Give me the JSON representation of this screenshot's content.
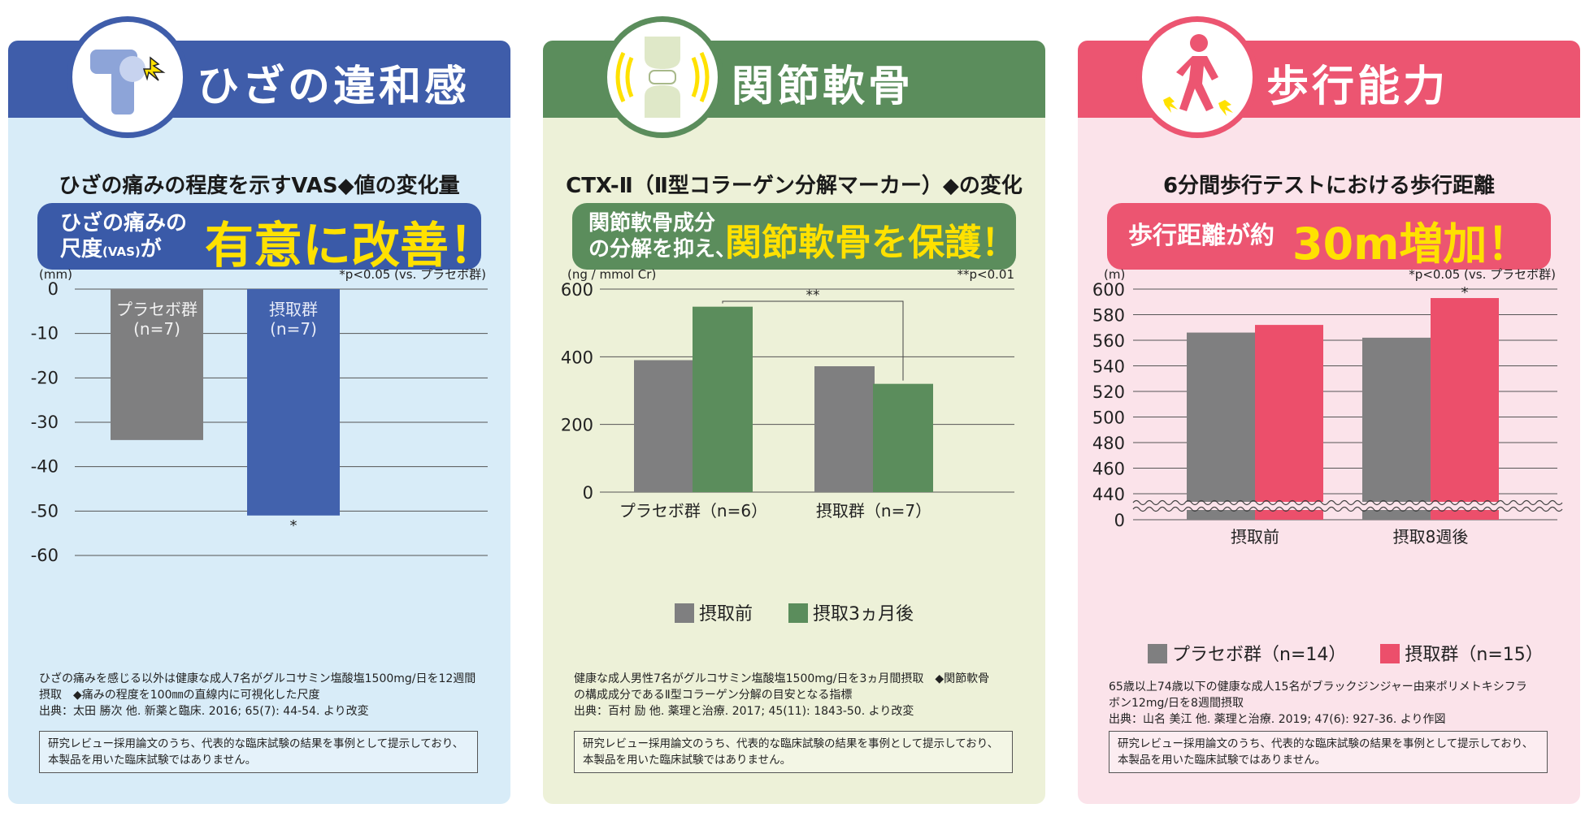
{
  "panels": [
    {
      "title": "ひざの違和感",
      "icon": "knee-pain-icon",
      "subtitle": "ひざの痛みの程度を示すVAS◆値の変化量",
      "banner_small_line1": "ひざの痛みの",
      "banner_small_line2": "尺度",
      "banner_small_vas": "(VAS)",
      "banner_small_ga": "が",
      "banner_big": "有意に改善！",
      "notes": [
        "ひざの痛みを感じる以外は健康な成人7名がグルコサミン塩酸塩1500mg/日を12週間",
        "摂取　◆痛みの程度を100㎜の直線内に可視化した尺度",
        "出典：太田 勝次 他. 新薬と臨床. 2016; 65(7): 44-54. より改変"
      ],
      "disclaimer": [
        "研究レビュー採用論文のうち、代表的な臨床試験の結果を事例として提示しており、",
        "本製品を用いた臨床試験ではありません。"
      ]
    },
    {
      "title": "関節軟骨",
      "icon": "joint-cartilage-icon",
      "subtitle": "CTX-Ⅱ（Ⅱ型コラーゲン分解マーカー）◆の変化",
      "banner_small_line1": "関節軟骨成分",
      "banner_small_line2": "の分解を抑え、",
      "banner_big": "関節軟骨を保護！",
      "notes": [
        "健康な成人男性7名がグルコサミン塩酸塩1500mg/日を3ヵ月間摂取　◆関節軟骨",
        "の構成成分であるⅡ型コラーゲン分解の目安となる指標",
        "出典：百村 励 他. 薬理と治療. 2017; 45(11): 1843-50. より改変"
      ],
      "disclaimer": [
        "研究レビュー採用論文のうち、代表的な臨床試験の結果を事例として提示しており、",
        "本製品を用いた臨床試験ではありません。"
      ]
    },
    {
      "title": "歩行能力",
      "icon": "walking-person-icon",
      "subtitle": "6分間歩行テストにおける歩行距離",
      "banner_small_line1": "歩行距離が約",
      "banner_big": "30m増加！",
      "notes": [
        "65歳以上74歳以下の健康な成人15名がブラックジンジャー由来ポリメトキシフラ",
        "ボン12mg/日を8週間摂取",
        "出典：山名 美江 他. 薬理と治療. 2019; 47(6): 927-36. より作図"
      ],
      "disclaimer": [
        "研究レビュー採用論文のうち、代表的な臨床試験の結果を事例として提示しており、",
        "本製品を用いた臨床試験ではありません。"
      ]
    }
  ],
  "colors": {
    "blue_header": "#3f5daa",
    "blue_bg": "#d8ecf8",
    "blue_bar": "#4262ad",
    "blue_banner": "#3a5aa8",
    "green_header": "#5b8d5c",
    "green_bg": "#edf1d8",
    "green_bar": "#5b8d5c",
    "green_banner": "#5b8d5c",
    "pink_header": "#ec5571",
    "pink_bg": "#fbe3ea",
    "pink_bar": "#ec4f6b",
    "pink_banner": "#ec5571",
    "gray_bar": "#7f7f80",
    "yellow": "#ffe100"
  },
  "chart_data": [
    {
      "type": "bar",
      "title": "ひざの痛みの程度を示すVAS◆値の変化量",
      "ylabel": "(mm)",
      "ylim": [
        -60,
        0
      ],
      "yticks": [
        "0",
        "-10",
        "-20",
        "-30",
        "-40",
        "-50",
        "-60"
      ],
      "ytick_values": [
        0,
        -10,
        -20,
        -30,
        -40,
        -50,
        -60
      ],
      "significance_note": "*p<0.05 (vs. プラセボ群)",
      "bars": [
        {
          "label": "プラセボ群",
          "n": "(n=7)",
          "value": -34,
          "color": "#7f7f80"
        },
        {
          "label": "摂取群",
          "n": "(n=7)",
          "value": -51,
          "color": "#4262ad",
          "marker": "*"
        }
      ]
    },
    {
      "type": "bar",
      "title": "CTX-Ⅱ（Ⅱ型コラーゲン分解マーカー）◆の変化",
      "ylabel": "(ng / mmol Cr)",
      "ylim": [
        0,
        600
      ],
      "yticks": [
        "600",
        "400",
        "200",
        "0"
      ],
      "ytick_values": [
        600,
        400,
        200,
        0
      ],
      "significance_note": "**p<0.01",
      "bracket_label": "**",
      "categories": [
        "プラセボ群（n=6）",
        "摂取群（n=7）"
      ],
      "series": [
        {
          "name": "摂取前",
          "values": [
            390,
            372
          ],
          "color": "#7f7f80"
        },
        {
          "name": "摂取3ヵ月後",
          "values": [
            548,
            320
          ],
          "color": "#5b8d5c"
        }
      ]
    },
    {
      "type": "bar",
      "title": "6分間歩行テストにおける歩行距離",
      "ylabel": "(m)",
      "ylim": [
        440,
        600
      ],
      "axis_break": true,
      "yticks": [
        "600",
        "580",
        "560",
        "540",
        "520",
        "500",
        "480",
        "460",
        "440",
        "0"
      ],
      "ytick_values": [
        600,
        580,
        560,
        540,
        520,
        500,
        480,
        460,
        440,
        0
      ],
      "significance_note": "*p<0.05 (vs. プラセボ群)",
      "categories": [
        "摂取前",
        "摂取8週後"
      ],
      "series": [
        {
          "name": "プラセボ群（n=14）",
          "values": [
            566,
            562
          ],
          "color": "#7f7f80"
        },
        {
          "name": "摂取群（n=15）",
          "values": [
            572,
            593
          ],
          "color": "#ec4f6b",
          "markers": [
            "",
            "*"
          ]
        }
      ]
    }
  ]
}
